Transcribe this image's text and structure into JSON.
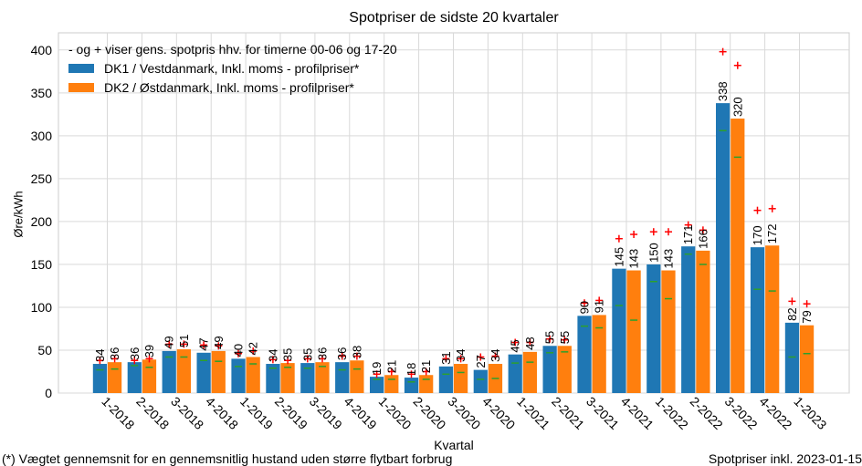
{
  "chart_data": {
    "type": "bar",
    "title": "Spotpriser de sidste 20 kvartaler",
    "xlabel": "Kvartal",
    "ylabel": "Øre/kWh",
    "ylim": [
      0,
      420
    ],
    "yticks": [
      0,
      50,
      100,
      150,
      200,
      250,
      300,
      350,
      400
    ],
    "grid": true,
    "legend_location": "top-left",
    "legend_note": "- og + viser gens. spotpris hhv. for timerne 00-06 og 17-20",
    "categories": [
      "1-2018",
      "2-2018",
      "3-2018",
      "4-2018",
      "1-2019",
      "2-2019",
      "3-2019",
      "4-2019",
      "1-2020",
      "2-2020",
      "3-2020",
      "4-2020",
      "1-2021",
      "2-2021",
      "3-2021",
      "4-2021",
      "1-2022",
      "2-2022",
      "3-2022",
      "4-2022",
      "1-2023"
    ],
    "series": [
      {
        "name": "DK1 / Vestdanmark, Inkl. moms - profilpriser*",
        "color": "#1f77b4",
        "values": [
          34,
          36,
          49,
          47,
          40,
          34,
          35,
          36,
          19,
          18,
          31,
          27,
          45,
          55,
          90,
          145,
          150,
          171,
          338,
          170,
          82
        ],
        "labels": [
          "34",
          "36",
          "49",
          "47",
          "40",
          "34",
          "35",
          "36",
          "19",
          "18",
          "31",
          "27",
          "45",
          "55",
          "90",
          "145",
          "150",
          "171",
          "338",
          "170",
          "82"
        ],
        "night_minus": [
          27,
          32,
          42,
          38,
          31,
          29,
          29,
          27,
          16,
          13,
          22,
          16,
          35,
          47,
          78,
          102,
          130,
          162,
          306,
          121,
          42
        ],
        "evening_plus": [
          38,
          38,
          57,
          56,
          46,
          39,
          40,
          43,
          22,
          22,
          40,
          42,
          59,
          63,
          105,
          180,
          188,
          196,
          398,
          213,
          107
        ]
      },
      {
        "name": "DK2 / Østdanmark, Inkl. moms - profilpriser*",
        "color": "#ff7f0e",
        "values": [
          36,
          39,
          51,
          49,
          42,
          35,
          36,
          38,
          21,
          21,
          34,
          34,
          48,
          55,
          91,
          143,
          143,
          166,
          320,
          172,
          79
        ],
        "labels": [
          "36",
          "39",
          "51",
          "49",
          "42",
          "35",
          "36",
          "38",
          "21",
          "21",
          "34",
          "34",
          "48",
          "55",
          "91",
          "143",
          "143",
          "166",
          "320",
          "172",
          "79"
        ],
        "night_minus": [
          28,
          30,
          42,
          37,
          34,
          30,
          31,
          28,
          16,
          16,
          24,
          17,
          36,
          48,
          76,
          85,
          110,
          150,
          275,
          119,
          46
        ],
        "evening_plus": [
          40,
          40,
          57,
          55,
          49,
          38,
          40,
          43,
          25,
          25,
          40,
          43,
          59,
          62,
          108,
          185,
          188,
          190,
          382,
          215,
          104
        ]
      }
    ],
    "marker_colors": {
      "minus": "#2ca02c",
      "plus": "#ff0000"
    }
  },
  "footnote_left": "(*) Vægtet gennemsnit for en gennemsnitlig hustand uden større flytbart forbrug",
  "footnote_right": "Spotpriser inkl. 2023-01-15"
}
